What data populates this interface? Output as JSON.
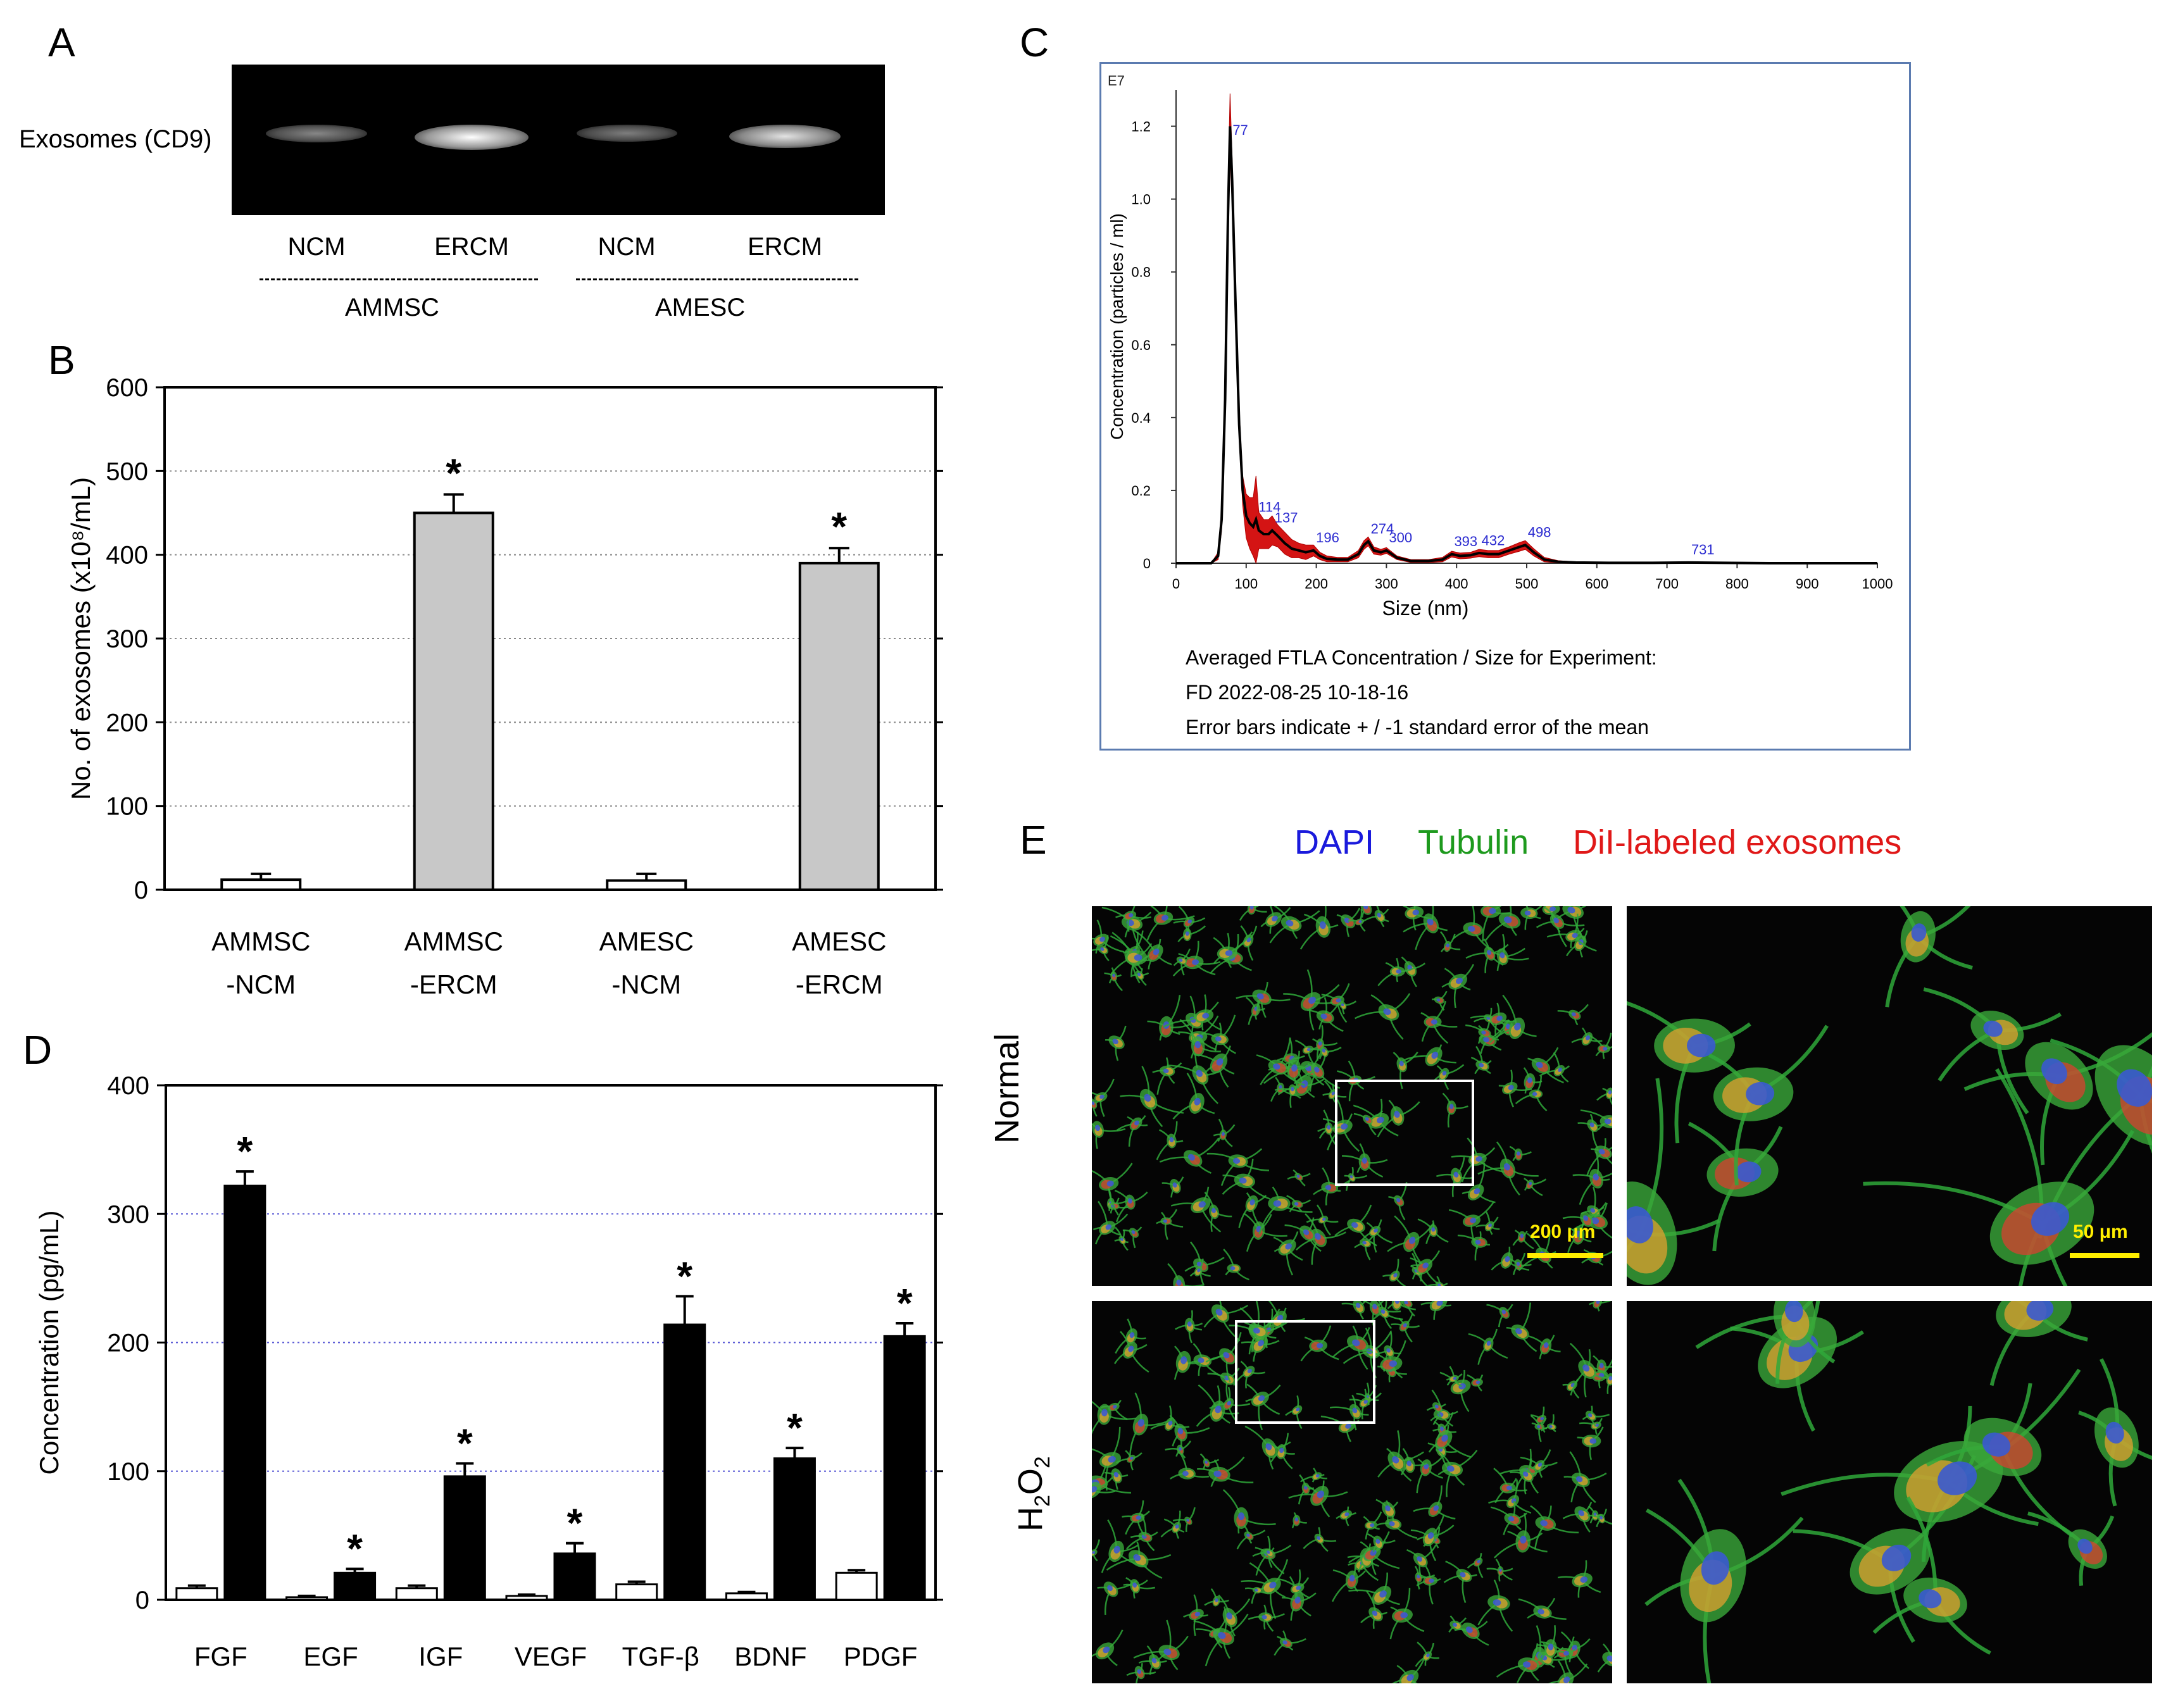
{
  "panels": {
    "A": "A",
    "B": "B",
    "C": "C",
    "D": "D",
    "E": "E"
  },
  "panel_a": {
    "row_label": "Exosomes (CD9)",
    "lanes": [
      "NCM",
      "ERCM",
      "NCM",
      "ERCM"
    ],
    "lane_band_intensity": [
      0.35,
      1.0,
      0.3,
      0.85
    ],
    "groups": [
      "AMMSC",
      "AMESC"
    ]
  },
  "panel_c": {
    "exponent_label": "E7",
    "peak_labels": [
      "77",
      "114",
      "137",
      "196",
      "274",
      "300",
      "393",
      "432",
      "498",
      "731"
    ],
    "caption_lines": [
      "Averaged FTLA Concentration / Size for Experiment:",
      "FD 2022-08-25 10-18-16",
      "Error bars indicate + / -1 standard error of the mean"
    ]
  },
  "panel_e": {
    "legend": [
      "DAPI",
      "Tubulin",
      "DiI-labeled exosomes"
    ],
    "legend_colors": [
      "#1a1adc",
      "#1e9a1e",
      "#e01818"
    ],
    "row_labels": [
      "Normal",
      "H2O2"
    ],
    "scale_left": "200 μm",
    "scale_right": "50 μm"
  },
  "chart_data": [
    {
      "panel": "B",
      "type": "bar",
      "categories": [
        "AMMSC\n-NCM",
        "AMMSC\n-ERCM",
        "AMESC\n-NCM",
        "AMESC\n-ERCM"
      ],
      "category_lines": [
        [
          "AMMSC",
          "-NCM"
        ],
        [
          "AMMSC",
          "-ERCM"
        ],
        [
          "AMESC",
          "-NCM"
        ],
        [
          "AMESC",
          "-ERCM"
        ]
      ],
      "values": [
        12,
        450,
        11,
        390
      ],
      "errors": [
        7,
        22,
        8,
        18
      ],
      "significant": [
        false,
        true,
        false,
        true
      ],
      "bar_colors": [
        "#ffffff",
        "#c8c8c8",
        "#ffffff",
        "#c8c8c8"
      ],
      "ylabel": "No. of exosomes (x10⁸/mL)",
      "ylim": [
        0,
        600
      ],
      "yticks": [
        0,
        100,
        200,
        300,
        400,
        500,
        600
      ],
      "grid": true,
      "marker": "*"
    },
    {
      "panel": "C",
      "type": "line",
      "xlabel": "Size (nm)",
      "ylabel": "Concentration (particles / ml)",
      "xlim": [
        0,
        1000
      ],
      "ylim": [
        0,
        1.3
      ],
      "xticks": [
        0,
        100,
        200,
        300,
        400,
        500,
        600,
        700,
        800,
        900,
        1000
      ],
      "yticks": [
        0,
        0.2,
        0.4,
        0.6,
        0.8,
        1.0,
        1.2
      ],
      "ytick_labels": [
        "0",
        "0.2",
        "0.4",
        "0.6",
        "0.8",
        "1.0",
        "1.2"
      ],
      "peak_positions": [
        77,
        114,
        137,
        196,
        274,
        300,
        393,
        432,
        498,
        731
      ],
      "series": [
        {
          "x": [
            0,
            50,
            60,
            65,
            70,
            74,
            77,
            80,
            85,
            90,
            95,
            100,
            105,
            110,
            114,
            118,
            125,
            132,
            137,
            145,
            155,
            165,
            175,
            185,
            196,
            205,
            215,
            230,
            245,
            260,
            268,
            274,
            282,
            292,
            300,
            315,
            335,
            360,
            380,
            393,
            405,
            420,
            432,
            445,
            460,
            475,
            490,
            498,
            510,
            525,
            545,
            570,
            620,
            680,
            731,
            780,
            850,
            1000
          ],
          "y": [
            0,
            0,
            0.02,
            0.12,
            0.45,
            0.95,
            1.2,
            1.05,
            0.7,
            0.38,
            0.2,
            0.13,
            0.11,
            0.1,
            0.12,
            0.09,
            0.08,
            0.08,
            0.09,
            0.075,
            0.055,
            0.04,
            0.035,
            0.03,
            0.035,
            0.02,
            0.012,
            0.01,
            0.01,
            0.025,
            0.05,
            0.06,
            0.035,
            0.03,
            0.035,
            0.015,
            0.006,
            0.006,
            0.01,
            0.025,
            0.02,
            0.022,
            0.028,
            0.025,
            0.025,
            0.035,
            0.045,
            0.05,
            0.03,
            0.01,
            0.004,
            0.002,
            0.001,
            0.001,
            0.002,
            0.001,
            0,
            0
          ],
          "error_band": [
            0,
            0,
            0.01,
            0.03,
            0.05,
            0.07,
            0.09,
            0.06,
            0.05,
            0.04,
            0.04,
            0.06,
            0.07,
            0.08,
            0.12,
            0.05,
            0.04,
            0.04,
            0.04,
            0.03,
            0.03,
            0.025,
            0.02,
            0.02,
            0.015,
            0.01,
            0.008,
            0.006,
            0.006,
            0.01,
            0.012,
            0.012,
            0.01,
            0.008,
            0.008,
            0.005,
            0.004,
            0.004,
            0.006,
            0.008,
            0.008,
            0.008,
            0.01,
            0.01,
            0.01,
            0.01,
            0.012,
            0.012,
            0.01,
            0.006,
            0.003,
            0.002,
            0.001,
            0.001,
            0.001,
            0.001,
            0,
            0
          ]
        }
      ]
    },
    {
      "panel": "D",
      "type": "bar",
      "categories": [
        "FGF",
        "EGF",
        "IGF",
        "VEGF",
        "TGF-β",
        "BDNF",
        "PDGF"
      ],
      "series": [
        {
          "name": "",
          "color": "#ffffff",
          "values": [
            9,
            2,
            9,
            3,
            12,
            5,
            21
          ],
          "errors": [
            2,
            1,
            2,
            1,
            2,
            1,
            2
          ]
        },
        {
          "name": "",
          "color": "#000000",
          "values": [
            322,
            21,
            96,
            36,
            214,
            110,
            205
          ],
          "errors": [
            11,
            3,
            10,
            8,
            22,
            8,
            10
          ]
        }
      ],
      "significant": [
        true,
        true,
        true,
        true,
        true,
        true,
        true
      ],
      "ylabel": "Concentration (pg/mL)",
      "ylim": [
        0,
        400
      ],
      "yticks": [
        0,
        100,
        200,
        300,
        400
      ],
      "grid": true,
      "marker": "*"
    }
  ]
}
